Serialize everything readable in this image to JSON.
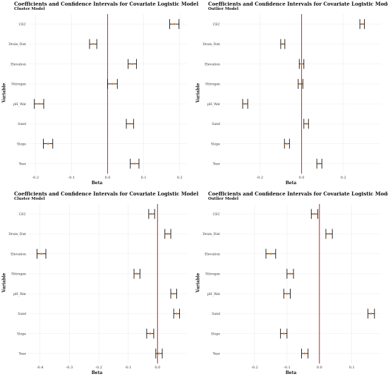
{
  "chart_data": [
    {
      "type": "forest",
      "title": "Coefficients and Confidence Intervals for Covariate Logistic Model",
      "subtitle": "Cluster Model",
      "xlabel": "Beta",
      "ylabel": "Variable",
      "xlim": [
        -0.22,
        0.22
      ],
      "xticks": [
        -0.2,
        -0.1,
        0.0,
        0.1,
        0.2
      ],
      "xtick_labels": [
        "-0.2",
        "-0.1",
        "0.0",
        "0.1",
        "0.2"
      ],
      "categories": [
        "CEC",
        "Drain_Dist",
        "Elevation",
        "Nitrogen",
        "pH_Wat",
        "Sand",
        "Slope",
        "Year"
      ],
      "estimates": [
        0.185,
        -0.04,
        0.068,
        0.013,
        -0.19,
        0.062,
        -0.165,
        0.075
      ],
      "ci_low": [
        0.172,
        -0.05,
        0.057,
        0.0,
        -0.203,
        0.052,
        -0.178,
        0.063
      ],
      "ci_high": [
        0.198,
        -0.03,
        0.08,
        0.027,
        -0.177,
        0.072,
        -0.152,
        0.087
      ],
      "reference_line": 0.0,
      "reference_color": "#c0392b",
      "point_color": "#e67e22",
      "grid": true
    },
    {
      "type": "forest",
      "title": "Coefficients and Confidence Intervals for Covariate Logistic Model",
      "subtitle": "Outlier Model",
      "xlabel": "Beta",
      "ylabel": "Variable",
      "xlim": [
        -0.38,
        0.38
      ],
      "xticks": [
        -0.2,
        0.0,
        0.2
      ],
      "xtick_labels": [
        "-0.2",
        "0.0",
        "0.2"
      ],
      "categories": [
        "CEC",
        "Drain_Dist",
        "Elevation",
        "Nitrogen",
        "pH_Wat",
        "Sand",
        "Slope",
        "Year"
      ],
      "estimates": [
        0.29,
        -0.09,
        0.0,
        -0.005,
        -0.27,
        0.022,
        -0.07,
        0.085
      ],
      "ci_low": [
        0.279,
        -0.1,
        -0.011,
        -0.016,
        -0.282,
        0.011,
        -0.082,
        0.073
      ],
      "ci_high": [
        0.301,
        -0.08,
        0.011,
        0.006,
        -0.258,
        0.033,
        -0.058,
        0.097
      ],
      "reference_line": 0.0,
      "reference_color": "#c0392b",
      "point_color": "#e67e22",
      "grid": true
    },
    {
      "type": "forest",
      "title": "Coefficients and Confidence Intervals for Covariate Logistic Model",
      "subtitle": "Cluster Model",
      "xlabel": "Beta",
      "ylabel": "Variable",
      "xlim": [
        -0.44,
        0.1
      ],
      "xticks": [
        -0.4,
        -0.3,
        -0.2,
        -0.1,
        0.0
      ],
      "xtick_labels": [
        "-0.4",
        "-0.3",
        "-0.2",
        "-0.1",
        "0.0"
      ],
      "categories": [
        "CEC",
        "Drain_Dist",
        "Elevation",
        "Nitrogen",
        "pH_Wat",
        "Sand",
        "Slope",
        "Year"
      ],
      "estimates": [
        -0.02,
        0.035,
        -0.395,
        -0.07,
        0.055,
        0.065,
        -0.025,
        0.005
      ],
      "ci_low": [
        -0.03,
        0.025,
        -0.41,
        -0.08,
        0.045,
        0.055,
        -0.037,
        -0.006
      ],
      "ci_high": [
        -0.01,
        0.045,
        -0.38,
        -0.06,
        0.065,
        0.075,
        -0.013,
        0.016
      ],
      "reference_line": 0.0,
      "reference_color": "#c0392b",
      "point_color": "#e67e22",
      "grid": true
    },
    {
      "type": "forest",
      "title": "Coefficients and Confidence Intervals for Covariate Logistic Model",
      "subtitle": "Outlier Model",
      "xlabel": "Beta",
      "ylabel": "Variable",
      "xlim": [
        -0.3,
        0.19
      ],
      "xticks": [
        -0.2,
        -0.1,
        0.0,
        0.1
      ],
      "xtick_labels": [
        "-0.2",
        "-0.1",
        "0.0",
        "0.1"
      ],
      "categories": [
        "CEC",
        "Drain_Dist",
        "Elevation",
        "Nitrogen",
        "pH_Wat",
        "Sand",
        "Slope",
        "Year"
      ],
      "estimates": [
        -0.015,
        0.03,
        -0.15,
        -0.09,
        -0.1,
        0.16,
        -0.11,
        -0.045
      ],
      "ci_low": [
        -0.025,
        0.02,
        -0.165,
        -0.1,
        -0.11,
        0.15,
        -0.12,
        -0.055
      ],
      "ci_high": [
        -0.005,
        0.04,
        -0.135,
        -0.08,
        -0.09,
        0.17,
        -0.1,
        -0.035
      ],
      "reference_line": 0.0,
      "reference_color": "#c0392b",
      "point_color": "#e67e22",
      "grid": true
    }
  ]
}
